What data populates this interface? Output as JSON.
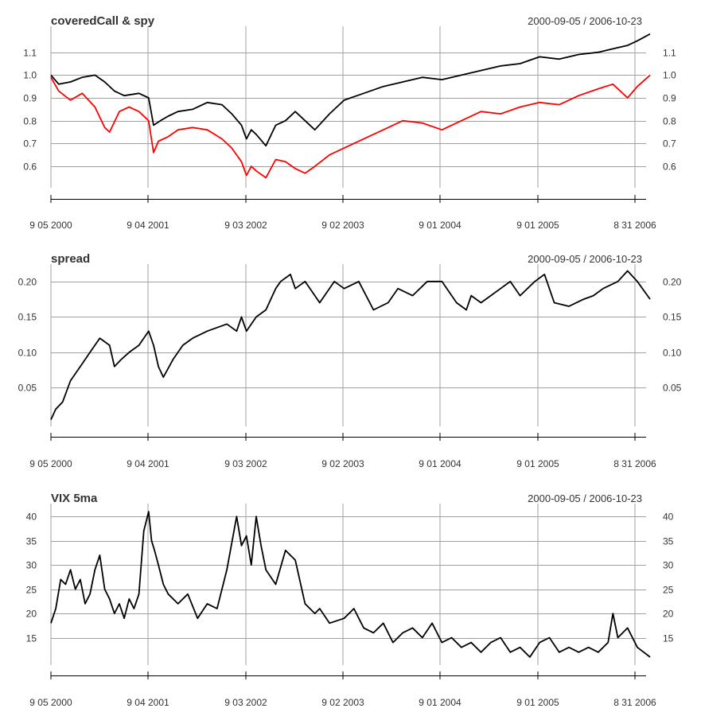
{
  "date_range": "2000-09-05 / 2006-10-23",
  "x_axis_labels": [
    "9 05 2000",
    "9 04 2001",
    "9 03 2002",
    "9 02 2003",
    "9 01 2004",
    "9 01 2005",
    "8 31 2006"
  ],
  "colors": {
    "black": "#000000",
    "red": "#ff0000",
    "grid": "#a0a0a0"
  },
  "chart_data": [
    {
      "type": "line",
      "title": "coveredCall & spy",
      "x_range": [
        0,
        6.13
      ],
      "ylim": [
        0.52,
        1.2
      ],
      "y_ticks": [
        {
          "value": 0.6,
          "label": "0.6"
        },
        {
          "value": 0.7,
          "label": "0.7"
        },
        {
          "value": 0.8,
          "label": "0.8"
        },
        {
          "value": 0.9,
          "label": "0.9"
        },
        {
          "value": 1.0,
          "label": "1.0"
        },
        {
          "value": 1.1,
          "label": "1.1"
        }
      ],
      "series": [
        {
          "name": "coveredCall",
          "color": "#000000",
          "x": [
            0,
            0.08,
            0.2,
            0.32,
            0.45,
            0.55,
            0.65,
            0.75,
            0.9,
            1.0,
            1.05,
            1.12,
            1.2,
            1.3,
            1.45,
            1.6,
            1.75,
            1.85,
            1.95,
            2.0,
            2.05,
            2.1,
            2.2,
            2.3,
            2.4,
            2.5,
            2.6,
            2.7,
            2.85,
            3.0,
            3.2,
            3.4,
            3.6,
            3.8,
            4.0,
            4.2,
            4.4,
            4.6,
            4.8,
            5.0,
            5.2,
            5.4,
            5.6,
            5.8,
            5.9,
            6.0,
            6.13
          ],
          "values": [
            1.0,
            0.96,
            0.97,
            0.99,
            1.0,
            0.97,
            0.93,
            0.91,
            0.92,
            0.9,
            0.78,
            0.8,
            0.82,
            0.84,
            0.85,
            0.88,
            0.87,
            0.83,
            0.78,
            0.72,
            0.76,
            0.74,
            0.69,
            0.78,
            0.8,
            0.84,
            0.8,
            0.76,
            0.83,
            0.89,
            0.92,
            0.95,
            0.97,
            0.99,
            0.98,
            1.0,
            1.02,
            1.04,
            1.05,
            1.08,
            1.07,
            1.09,
            1.1,
            1.12,
            1.13,
            1.15,
            1.18
          ]
        },
        {
          "name": "spy",
          "color": "#ff0000",
          "x": [
            0,
            0.08,
            0.2,
            0.32,
            0.45,
            0.55,
            0.6,
            0.7,
            0.8,
            0.9,
            1.0,
            1.05,
            1.1,
            1.2,
            1.3,
            1.45,
            1.6,
            1.75,
            1.85,
            1.95,
            2.0,
            2.05,
            2.1,
            2.2,
            2.3,
            2.4,
            2.5,
            2.6,
            2.7,
            2.85,
            3.0,
            3.2,
            3.4,
            3.6,
            3.8,
            4.0,
            4.2,
            4.4,
            4.6,
            4.8,
            5.0,
            5.2,
            5.4,
            5.6,
            5.75,
            5.9,
            6.0,
            6.13
          ],
          "values": [
            0.99,
            0.93,
            0.89,
            0.92,
            0.86,
            0.77,
            0.75,
            0.84,
            0.86,
            0.84,
            0.8,
            0.66,
            0.71,
            0.73,
            0.76,
            0.77,
            0.76,
            0.72,
            0.68,
            0.62,
            0.56,
            0.6,
            0.58,
            0.55,
            0.63,
            0.62,
            0.59,
            0.57,
            0.6,
            0.65,
            0.68,
            0.72,
            0.76,
            0.8,
            0.79,
            0.76,
            0.8,
            0.84,
            0.83,
            0.86,
            0.88,
            0.87,
            0.91,
            0.94,
            0.96,
            0.9,
            0.95,
            1.0
          ]
        }
      ]
    },
    {
      "type": "line",
      "title": "spread",
      "x_range": [
        0,
        6.13
      ],
      "ylim": [
        0.0,
        0.22
      ],
      "y_ticks": [
        {
          "value": 0.05,
          "label": "0.05"
        },
        {
          "value": 0.1,
          "label": "0.10"
        },
        {
          "value": 0.15,
          "label": "0.15"
        },
        {
          "value": 0.2,
          "label": "0.20"
        }
      ],
      "series": [
        {
          "name": "spread",
          "color": "#000000",
          "x": [
            0,
            0.05,
            0.12,
            0.2,
            0.3,
            0.4,
            0.5,
            0.6,
            0.65,
            0.72,
            0.8,
            0.9,
            1.0,
            1.05,
            1.1,
            1.15,
            1.25,
            1.35,
            1.45,
            1.6,
            1.8,
            1.9,
            1.95,
            2.0,
            2.1,
            2.2,
            2.3,
            2.35,
            2.45,
            2.5,
            2.6,
            2.75,
            2.9,
            3.0,
            3.15,
            3.3,
            3.45,
            3.55,
            3.7,
            3.85,
            4.0,
            4.15,
            4.25,
            4.3,
            4.4,
            4.5,
            4.6,
            4.7,
            4.8,
            4.95,
            5.05,
            5.15,
            5.3,
            5.45,
            5.55,
            5.65,
            5.8,
            5.9,
            6.0,
            6.13
          ],
          "values": [
            0.005,
            0.02,
            0.03,
            0.06,
            0.08,
            0.1,
            0.12,
            0.11,
            0.08,
            0.09,
            0.1,
            0.11,
            0.13,
            0.11,
            0.08,
            0.065,
            0.09,
            0.11,
            0.12,
            0.13,
            0.14,
            0.13,
            0.15,
            0.13,
            0.15,
            0.16,
            0.19,
            0.2,
            0.21,
            0.19,
            0.2,
            0.17,
            0.2,
            0.19,
            0.2,
            0.16,
            0.17,
            0.19,
            0.18,
            0.2,
            0.2,
            0.17,
            0.16,
            0.18,
            0.17,
            0.18,
            0.19,
            0.2,
            0.18,
            0.2,
            0.21,
            0.17,
            0.165,
            0.175,
            0.18,
            0.19,
            0.2,
            0.215,
            0.2,
            0.175
          ]
        }
      ]
    },
    {
      "type": "line",
      "title": "VIX 5ma",
      "x_range": [
        0,
        6.13
      ],
      "ylim": [
        10,
        42
      ],
      "y_ticks": [
        {
          "value": 15,
          "label": "15"
        },
        {
          "value": 20,
          "label": "20"
        },
        {
          "value": 25,
          "label": "25"
        },
        {
          "value": 30,
          "label": "30"
        },
        {
          "value": 35,
          "label": "35"
        },
        {
          "value": 40,
          "label": "40"
        }
      ],
      "series": [
        {
          "name": "VIX 5ma",
          "color": "#000000",
          "x": [
            0,
            0.05,
            0.1,
            0.15,
            0.2,
            0.25,
            0.3,
            0.35,
            0.4,
            0.45,
            0.5,
            0.55,
            0.6,
            0.65,
            0.7,
            0.75,
            0.8,
            0.85,
            0.9,
            0.95,
            1.0,
            1.03,
            1.06,
            1.1,
            1.15,
            1.2,
            1.3,
            1.4,
            1.5,
            1.6,
            1.7,
            1.8,
            1.9,
            1.95,
            2.0,
            2.05,
            2.1,
            2.15,
            2.2,
            2.3,
            2.4,
            2.5,
            2.6,
            2.7,
            2.75,
            2.85,
            3.0,
            3.1,
            3.2,
            3.3,
            3.4,
            3.5,
            3.6,
            3.7,
            3.8,
            3.9,
            4.0,
            4.1,
            4.2,
            4.3,
            4.4,
            4.5,
            4.6,
            4.7,
            4.8,
            4.9,
            5.0,
            5.1,
            5.2,
            5.3,
            5.4,
            5.5,
            5.6,
            5.7,
            5.75,
            5.8,
            5.9,
            6.0,
            6.13
          ],
          "values": [
            18,
            21,
            27,
            26,
            29,
            25,
            27,
            22,
            24,
            29,
            32,
            25,
            23,
            20,
            22,
            19,
            23,
            21,
            24,
            37,
            41,
            35,
            33,
            30,
            26,
            24,
            22,
            24,
            19,
            22,
            21,
            29,
            40,
            34,
            36,
            30,
            40,
            34,
            29,
            26,
            33,
            31,
            22,
            20,
            21,
            18,
            19,
            21,
            17,
            16,
            18,
            14,
            16,
            17,
            15,
            18,
            14,
            15,
            13,
            14,
            12,
            14,
            15,
            12,
            13,
            11,
            14,
            15,
            12,
            13,
            12,
            13,
            12,
            14,
            20,
            15,
            17,
            13,
            11
          ]
        }
      ]
    }
  ]
}
